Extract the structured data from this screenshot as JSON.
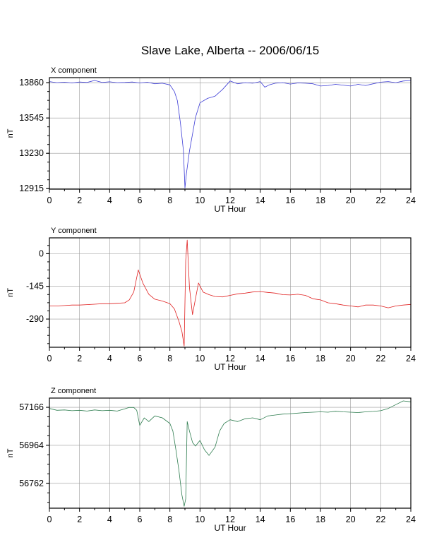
{
  "chart_data": {
    "title": "Slave Lake, Alberta -- 2006/06/15",
    "panels": [
      {
        "type": "line",
        "title": "X component",
        "xlabel": "UT Hour",
        "ylabel": "nT",
        "xlim": [
          0,
          24
        ],
        "ylim": [
          12910,
          13905
        ],
        "xticks": [
          "0",
          "2",
          "4",
          "6",
          "8",
          "10",
          "12",
          "14",
          "16",
          "18",
          "20",
          "22",
          "24"
        ],
        "yticks": [
          13860,
          13545,
          13230,
          12915
        ],
        "ytick_labels": [
          "13860",
          "13545",
          "13230",
          "12915"
        ],
        "color": "#3b3bd6",
        "x": [
          0,
          0.5,
          1,
          1.5,
          2,
          2.5,
          3,
          3.5,
          4,
          4.5,
          5,
          5.5,
          6,
          6.5,
          7,
          7.5,
          8,
          8.3,
          8.5,
          8.7,
          8.9,
          9,
          9.1,
          9.3,
          9.5,
          9.7,
          10,
          10.5,
          11,
          11.5,
          12,
          12.5,
          13,
          13.5,
          14,
          14.3,
          14.6,
          15,
          15.5,
          16,
          16.5,
          17,
          17.5,
          18,
          18.5,
          19,
          19.5,
          20,
          20.5,
          21,
          21.5,
          22,
          22.5,
          23,
          23.5,
          24
        ],
        "values": [
          13870,
          13860,
          13865,
          13858,
          13866,
          13862,
          13880,
          13862,
          13868,
          13860,
          13862,
          13866,
          13858,
          13864,
          13850,
          13855,
          13840,
          13780,
          13700,
          13500,
          13250,
          12920,
          13050,
          13250,
          13400,
          13550,
          13680,
          13720,
          13740,
          13800,
          13875,
          13850,
          13860,
          13855,
          13870,
          13820,
          13840,
          13855,
          13860,
          13848,
          13858,
          13855,
          13850,
          13830,
          13835,
          13845,
          13838,
          13830,
          13845,
          13835,
          13850,
          13865,
          13870,
          13860,
          13875,
          13880
        ]
      },
      {
        "type": "line",
        "title": "Y component",
        "xlabel": "UT Hour",
        "ylabel": "nT",
        "xlim": [
          0,
          24
        ],
        "ylim": [
          -415,
          70
        ],
        "xticks": [
          "0",
          "2",
          "4",
          "6",
          "8",
          "10",
          "12",
          "14",
          "16",
          "18",
          "20",
          "22",
          "24"
        ],
        "yticks": [
          0,
          -145,
          -290
        ],
        "ytick_labels": [
          "0",
          "-145",
          "-290"
        ],
        "color": "#e02020",
        "x": [
          0,
          0.5,
          1,
          1.5,
          2,
          2.5,
          3,
          3.5,
          4,
          4.5,
          5,
          5.3,
          5.6,
          5.9,
          6.2,
          6.6,
          7,
          7.5,
          8,
          8.3,
          8.6,
          8.8,
          8.95,
          9.05,
          9.15,
          9.3,
          9.5,
          9.7,
          9.9,
          10.2,
          10.6,
          11,
          11.5,
          12,
          12.5,
          13,
          13.5,
          14,
          14.5,
          15,
          15.5,
          16,
          16.5,
          17,
          17.5,
          18,
          18.5,
          19,
          19.5,
          20,
          20.5,
          21,
          21.5,
          22,
          22.5,
          23,
          23.5,
          24
        ],
        "values": [
          -232,
          -232,
          -230,
          -228,
          -228,
          -226,
          -224,
          -222,
          -222,
          -220,
          -218,
          -205,
          -170,
          -72,
          -130,
          -180,
          -202,
          -210,
          -222,
          -245,
          -300,
          -345,
          -410,
          -30,
          60,
          -150,
          -270,
          -200,
          -130,
          -170,
          -182,
          -190,
          -192,
          -185,
          -178,
          -175,
          -170,
          -168,
          -172,
          -175,
          -182,
          -183,
          -180,
          -185,
          -200,
          -205,
          -218,
          -222,
          -228,
          -232,
          -236,
          -228,
          -228,
          -232,
          -240,
          -232,
          -228,
          -225
        ]
      },
      {
        "type": "line",
        "title": "Z component",
        "xlabel": "UT Hour",
        "ylabel": "nT",
        "xlim": [
          0,
          24
        ],
        "ylim": [
          56630,
          57215
        ],
        "xticks": [
          "0",
          "2",
          "4",
          "6",
          "8",
          "10",
          "12",
          "14",
          "16",
          "18",
          "20",
          "22",
          "24"
        ],
        "yticks": [
          57166,
          56964,
          56762
        ],
        "ytick_labels": [
          "57166",
          "56964",
          "56762"
        ],
        "color": "#2e7d4f",
        "x": [
          0,
          0.5,
          1,
          1.5,
          2,
          2.5,
          3,
          3.5,
          4,
          4.5,
          5,
          5.3,
          5.6,
          5.8,
          6.0,
          6.3,
          6.6,
          7,
          7.5,
          8,
          8.2,
          8.4,
          8.6,
          8.8,
          8.95,
          9.05,
          9.15,
          9.3,
          9.5,
          9.7,
          10,
          10.3,
          10.6,
          11,
          11.3,
          11.6,
          12,
          12.5,
          13,
          13.5,
          14,
          14.5,
          15,
          15.5,
          16,
          16.5,
          17,
          17.5,
          18,
          18.5,
          19,
          19.5,
          20,
          20.5,
          21,
          21.5,
          22,
          22.5,
          23,
          23.5,
          24
        ],
        "values": [
          57160,
          57150,
          57152,
          57148,
          57150,
          57146,
          57152,
          57148,
          57150,
          57146,
          57158,
          57165,
          57165,
          57150,
          57070,
          57110,
          57090,
          57120,
          57110,
          57080,
          57040,
          56940,
          56830,
          56700,
          56640,
          56680,
          57090,
          57040,
          56980,
          56960,
          56990,
          56940,
          56910,
          56955,
          57040,
          57080,
          57100,
          57090,
          57105,
          57110,
          57100,
          57120,
          57125,
          57130,
          57132,
          57135,
          57138,
          57140,
          57142,
          57140,
          57145,
          57142,
          57140,
          57138,
          57142,
          57144,
          57148,
          57160,
          57180,
          57200,
          57195
        ]
      }
    ]
  }
}
